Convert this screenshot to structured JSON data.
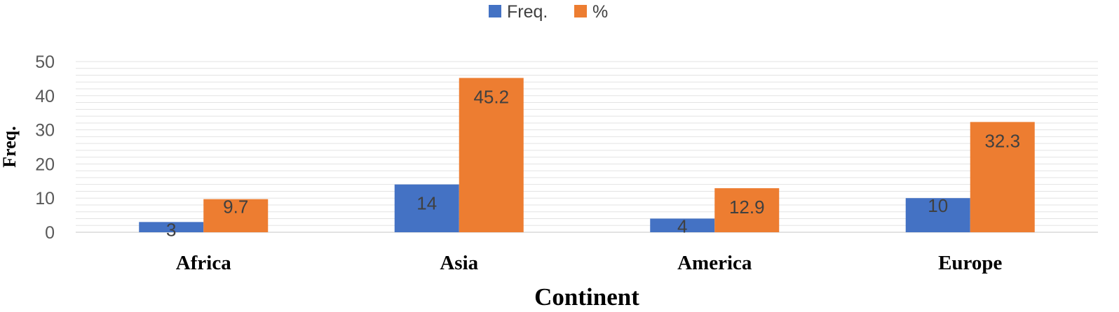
{
  "chart_data": {
    "type": "bar",
    "categories": [
      "Africa",
      "Asia",
      "America",
      "Europe"
    ],
    "series": [
      {
        "name": "Freq.",
        "values": [
          3,
          14,
          4,
          10
        ],
        "color": "#4472C4"
      },
      {
        "name": "%",
        "values": [
          9.7,
          45.2,
          12.9,
          32.3
        ],
        "color": "#ED7D31"
      }
    ],
    "data_labels": [
      [
        "3",
        "14",
        "4",
        "10"
      ],
      [
        "9.7",
        "45.2",
        "12.9",
        "32.3"
      ]
    ],
    "xlabel": "Continent",
    "ylabel": "Freq.",
    "ylim": [
      0,
      50
    ],
    "yticks": [
      0,
      10,
      20,
      30,
      40,
      50
    ],
    "grid": true,
    "legend_position": "top-center"
  }
}
